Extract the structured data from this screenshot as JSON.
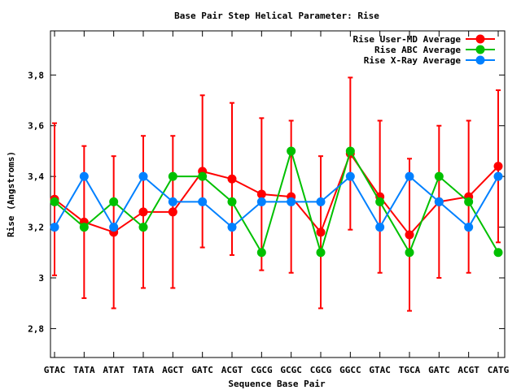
{
  "chart_data": {
    "type": "line",
    "title": "Base Pair Step Helical Parameter: Rise",
    "xlabel": "Sequence Base Pair",
    "ylabel": "Rise (Angstroms)",
    "categories": [
      "GTAC",
      "TATA",
      "ATAT",
      "TATA",
      "AGCT",
      "GATC",
      "ACGT",
      "CGCG",
      "GCGC",
      "CGCG",
      "GGCC",
      "GTAC",
      "TGCA",
      "GATC",
      "ACGT",
      "CATG"
    ],
    "ylim": [
      2.686,
      3.974
    ],
    "yticks": [
      2.8,
      3.0,
      3.2,
      3.4,
      3.6,
      3.8
    ],
    "ytick_labels": [
      "2,8",
      "3",
      "3,2",
      "3,4",
      "3,6",
      "3,8"
    ],
    "grid": false,
    "legend_position": "top-right",
    "series": [
      {
        "name": "Rise User-MD Average",
        "color": "#ff0000",
        "values": [
          3.31,
          3.22,
          3.18,
          3.26,
          3.26,
          3.42,
          3.39,
          3.33,
          3.32,
          3.18,
          3.49,
          3.32,
          3.17,
          3.3,
          3.32,
          3.44
        ],
        "error": [
          0.3,
          0.3,
          0.3,
          0.3,
          0.3,
          0.3,
          0.3,
          0.3,
          0.3,
          0.3,
          0.3,
          0.3,
          0.3,
          0.3,
          0.3,
          0.3
        ]
      },
      {
        "name": "Rise ABC Average",
        "color": "#00c000",
        "values": [
          3.3,
          3.2,
          3.3,
          3.2,
          3.4,
          3.4,
          3.3,
          3.1,
          3.5,
          3.1,
          3.5,
          3.3,
          3.1,
          3.4,
          3.3,
          3.1
        ]
      },
      {
        "name": "Rise X-Ray Average",
        "color": "#0080ff",
        "values": [
          3.2,
          3.4,
          3.2,
          3.4,
          3.3,
          3.3,
          3.2,
          3.3,
          3.3,
          3.3,
          3.4,
          3.2,
          3.4,
          3.3,
          3.2,
          3.4
        ]
      }
    ]
  }
}
